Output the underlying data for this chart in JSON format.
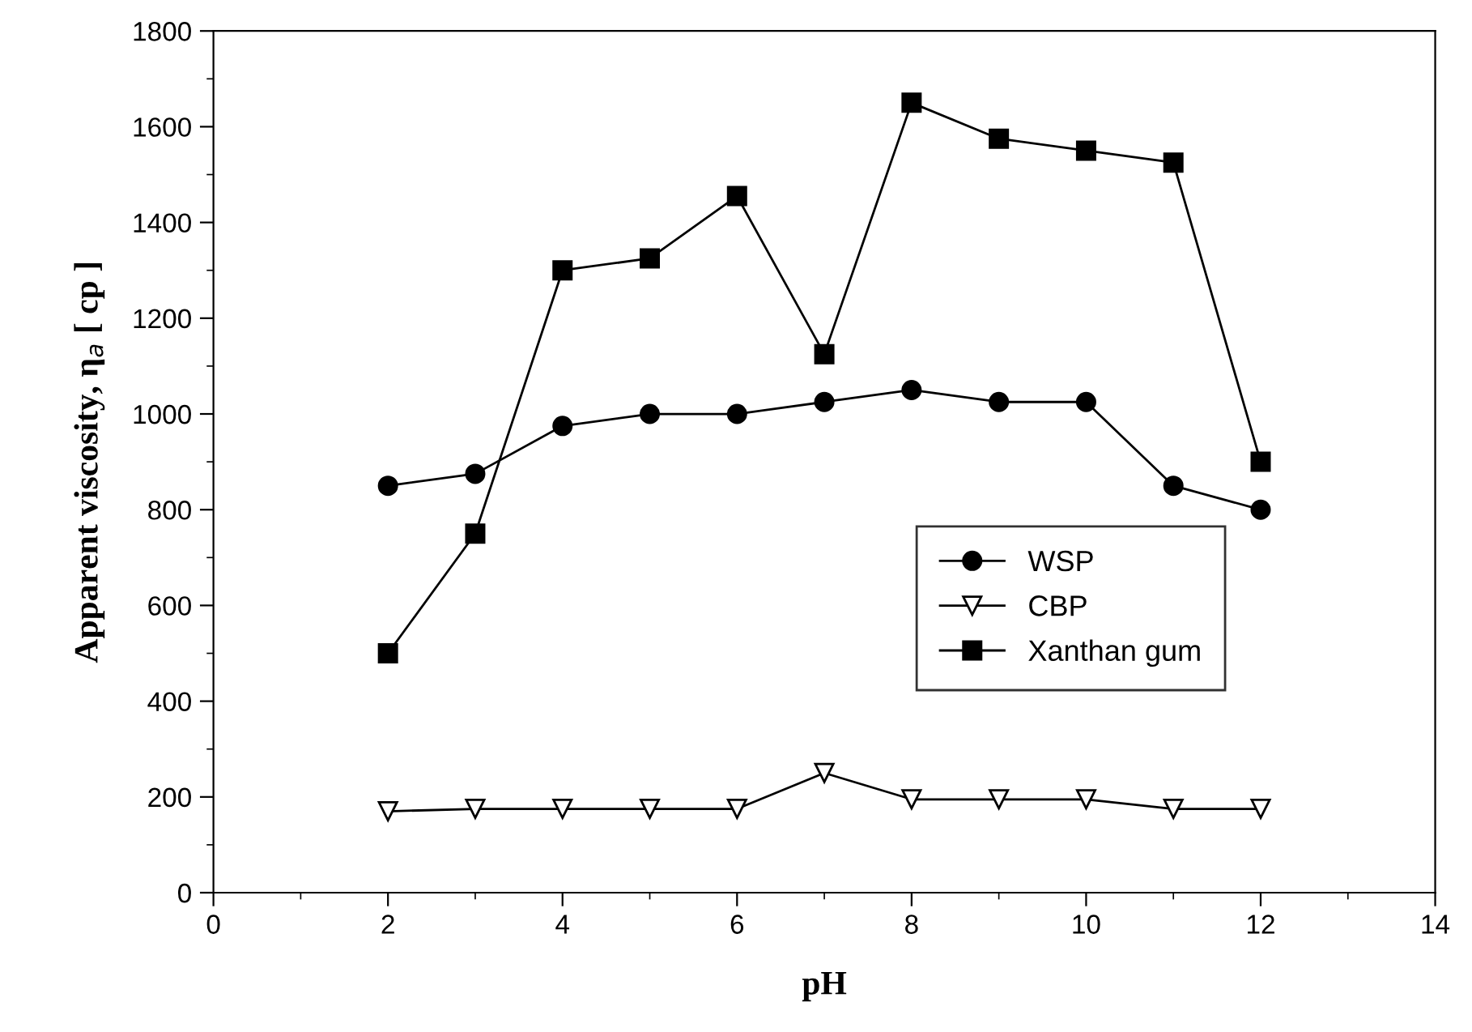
{
  "chart_data": {
    "type": "line",
    "xlabel": "pH",
    "ylabel": "Apparent viscosity, η$_{a}$ [ cp ]",
    "x": [
      2,
      3,
      4,
      5,
      6,
      7,
      8,
      9,
      10,
      11,
      12
    ],
    "series": [
      {
        "name": "WSP",
        "color": "#000000",
        "marker": "circle",
        "values": [
          850,
          875,
          975,
          1000,
          1000,
          1025,
          1050,
          1025,
          1025,
          850,
          800
        ]
      },
      {
        "name": "CBP",
        "color": "#000000",
        "marker": "triangle",
        "values": [
          170,
          175,
          175,
          175,
          175,
          250,
          195,
          195,
          195,
          175,
          175
        ]
      },
      {
        "name": "Xanthan gum",
        "color": "#000000",
        "marker": "square",
        "values": [
          500,
          750,
          1300,
          1325,
          1455,
          1125,
          1650,
          1575,
          1550,
          1525,
          900
        ]
      }
    ],
    "xlim": [
      0,
      14
    ],
    "xticks": [
      0,
      {
        "value": 1,
        "label": null
      },
      2,
      {
        "value": 3,
        "label": null
      },
      4,
      {
        "value": 5,
        "label": null
      },
      6,
      {
        "value": 7,
        "label": null
      },
      8,
      {
        "value": 9,
        "label": null
      },
      10,
      {
        "value": 11,
        "label": null
      },
      12,
      {
        "value": 13,
        "label": null
      },
      14
    ],
    "ylim": [
      0,
      1800
    ],
    "yticks": [
      0,
      {
        "value": 100,
        "label": null
      },
      200,
      {
        "value": 300,
        "label": null
      },
      400,
      {
        "value": 500,
        "label": null
      },
      600,
      {
        "value": 700,
        "label": null
      },
      800,
      {
        "value": 900,
        "label": null
      },
      1000,
      {
        "value": 1100,
        "label": null
      },
      1200,
      {
        "value": 1300,
        "label": null
      },
      1400,
      {
        "value": 1500,
        "label": null
      },
      1600,
      {
        "value": 1700,
        "label": null
      },
      1800
    ],
    "grid": false,
    "legend": "center right",
    "line_style": "solid"
  }
}
